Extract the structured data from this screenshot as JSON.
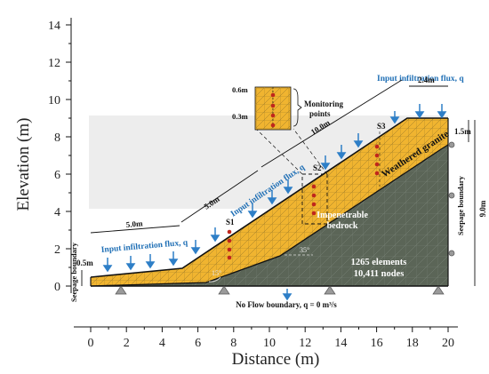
{
  "axes": {
    "xlabel": "Distance (m)",
    "ylabel": "Elevation (m)",
    "x_ticks": [
      "0",
      "2",
      "4",
      "6",
      "8",
      "10",
      "12",
      "14",
      "16",
      "18",
      "20"
    ],
    "y_ticks": [
      "0",
      "2",
      "4",
      "6",
      "8",
      "10",
      "12",
      "14"
    ],
    "xlim": [
      0,
      20
    ],
    "ylim": [
      0,
      14
    ]
  },
  "labels": {
    "infiltration_left": "Input infiltration flux, q",
    "infiltration_mid": "Input infiltration flux, q",
    "infiltration_top": "Input infiltration flux, q",
    "weathered_granite": "Weathered granite",
    "bedrock_line1": "Impenetrable",
    "bedrock_line2": "bedrock",
    "elements": "1265 elements",
    "nodes": "10,411 nodes",
    "no_flow": "No Flow boundary, q = 0 m³/s",
    "seepage_left": "Seepage boundary",
    "seepage_right": "Seepage boundary",
    "monitoring_line1": "Monitoring",
    "monitoring_line2": "points",
    "dim_0_6": "0.6m",
    "dim_0_3": "0.3m",
    "dim_0_5": "0.5m",
    "dim_1_5": "1.5m",
    "dim_9_0": "9.0m",
    "dim_2_4": "2.4m",
    "dim_5_0_a": "5.0m",
    "dim_5_0_b": "5.0m",
    "dim_10_0": "10.0m",
    "s1": "S1",
    "s2": "S2",
    "s3": "S3",
    "angle_15": "15°",
    "angle_35": "35°"
  },
  "colors": {
    "granite": "#f0b430",
    "bedrock": "#5b6557",
    "arrow": "#2e7fc7",
    "monitor": "#c0261c",
    "sky": "#ededed"
  }
}
